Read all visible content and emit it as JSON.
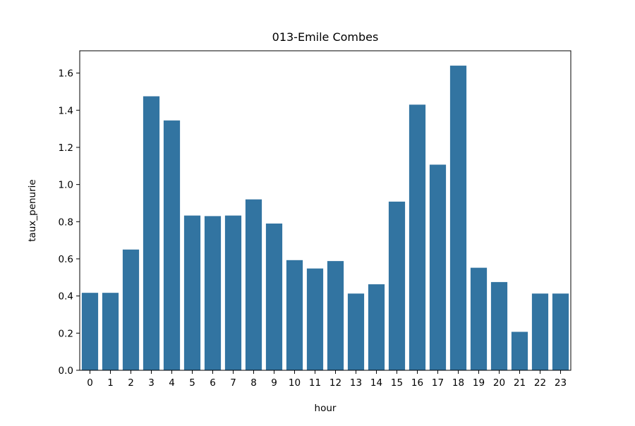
{
  "chart_data": {
    "type": "bar",
    "title": "013-Emile Combes",
    "xlabel": "hour",
    "ylabel": "taux_penurie",
    "categories": [
      "0",
      "1",
      "2",
      "3",
      "4",
      "5",
      "6",
      "7",
      "8",
      "9",
      "10",
      "11",
      "12",
      "13",
      "14",
      "15",
      "16",
      "17",
      "18",
      "19",
      "20",
      "21",
      "22",
      "23"
    ],
    "values": [
      0.417,
      0.417,
      0.65,
      1.475,
      1.345,
      0.833,
      0.83,
      0.833,
      0.92,
      0.79,
      0.593,
      0.548,
      0.588,
      0.413,
      0.463,
      0.908,
      1.43,
      1.107,
      1.64,
      0.552,
      0.475,
      0.207,
      0.413,
      0.413
    ],
    "ylim": [
      0,
      1.72
    ],
    "yticks": [
      "0.0",
      "0.2",
      "0.4",
      "0.6",
      "0.8",
      "1.0",
      "1.2",
      "1.4",
      "1.6"
    ],
    "grid": false,
    "bar_color": "#3274a1"
  }
}
